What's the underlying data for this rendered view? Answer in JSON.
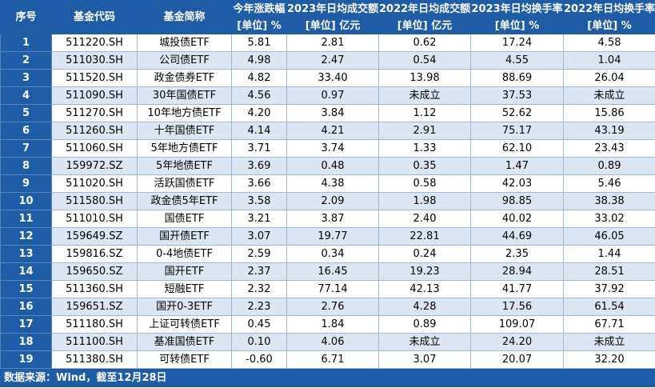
{
  "headers": {
    "row1": [
      "序号",
      "基金代码",
      "基金简称",
      "今年涨跌幅",
      "2023年日均成交额",
      "2022年日均成交额",
      "2023年日均换手率",
      "2022年日均换手率"
    ],
    "row2": [
      "[单位] %",
      "[单位] 亿元",
      "[单位] 亿元",
      "[单位] %",
      "[单位] %"
    ]
  },
  "rows": [
    [
      "1",
      "511220.SH",
      "城投债ETF",
      "5.81",
      "2.81",
      "0.62",
      "17.24",
      "4.58"
    ],
    [
      "2",
      "511030.SH",
      "公司债ETF",
      "4.98",
      "2.47",
      "0.54",
      "4.55",
      "1.04"
    ],
    [
      "3",
      "511520.SH",
      "政金债券ETF",
      "4.82",
      "33.40",
      "13.98",
      "88.69",
      "26.04"
    ],
    [
      "4",
      "511090.SH",
      "30年国债ETF",
      "4.56",
      "0.97",
      "未成立",
      "37.53",
      "未成立"
    ],
    [
      "5",
      "511270.SH",
      "10年地方债ETF",
      "4.20",
      "3.84",
      "1.12",
      "52.62",
      "15.86"
    ],
    [
      "6",
      "511260.SH",
      "十年国债ETF",
      "4.14",
      "4.21",
      "2.91",
      "75.17",
      "43.19"
    ],
    [
      "7",
      "511060.SH",
      "5年地方债ETF",
      "3.71",
      "3.74",
      "1.33",
      "62.10",
      "23.43"
    ],
    [
      "8",
      "159972.SZ",
      "5年地债ETF",
      "3.69",
      "0.48",
      "0.35",
      "1.47",
      "0.89"
    ],
    [
      "9",
      "511020.SH",
      "活跃国债ETF",
      "3.66",
      "4.38",
      "0.58",
      "42.03",
      "5.46"
    ],
    [
      "10",
      "511580.SH",
      "政金债5年ETF",
      "3.58",
      "2.09",
      "1.98",
      "98.85",
      "38.38"
    ],
    [
      "11",
      "511010.SH",
      "国债ETF",
      "3.21",
      "3.87",
      "2.40",
      "40.02",
      "33.02"
    ],
    [
      "12",
      "159649.SZ",
      "国开债ETF",
      "3.07",
      "19.77",
      "22.81",
      "44.69",
      "46.05"
    ],
    [
      "13",
      "159816.SZ",
      "0-4地债ETF",
      "2.59",
      "0.34",
      "0.24",
      "2.35",
      "1.44"
    ],
    [
      "14",
      "159650.SZ",
      "国开ETF",
      "2.37",
      "16.45",
      "19.23",
      "28.94",
      "28.51"
    ],
    [
      "15",
      "511360.SH",
      "短融ETF",
      "2.32",
      "77.14",
      "42.13",
      "41.77",
      "37.92"
    ],
    [
      "16",
      "159651.SZ",
      "国开0-3ETF",
      "2.23",
      "2.76",
      "4.28",
      "17.56",
      "61.54"
    ],
    [
      "17",
      "511180.SH",
      "上证可转债ETF",
      "0.45",
      "1.84",
      "0.89",
      "109.07",
      "67.71"
    ],
    [
      "18",
      "511100.SH",
      "基准国债ETF",
      "0.10",
      "4.06",
      "未成立",
      "24.20",
      "未成立"
    ],
    [
      "19",
      "511380.SH",
      "可转债ETF",
      "-0.60",
      "6.71",
      "3.07",
      "20.07",
      "32.20"
    ]
  ],
  "footer": "数据来源：Wind，截至12月28日",
  "colors": {
    "header_bg": "#1f5ca8",
    "stripe": "#dce6f2",
    "border": "#9fb8d6"
  }
}
